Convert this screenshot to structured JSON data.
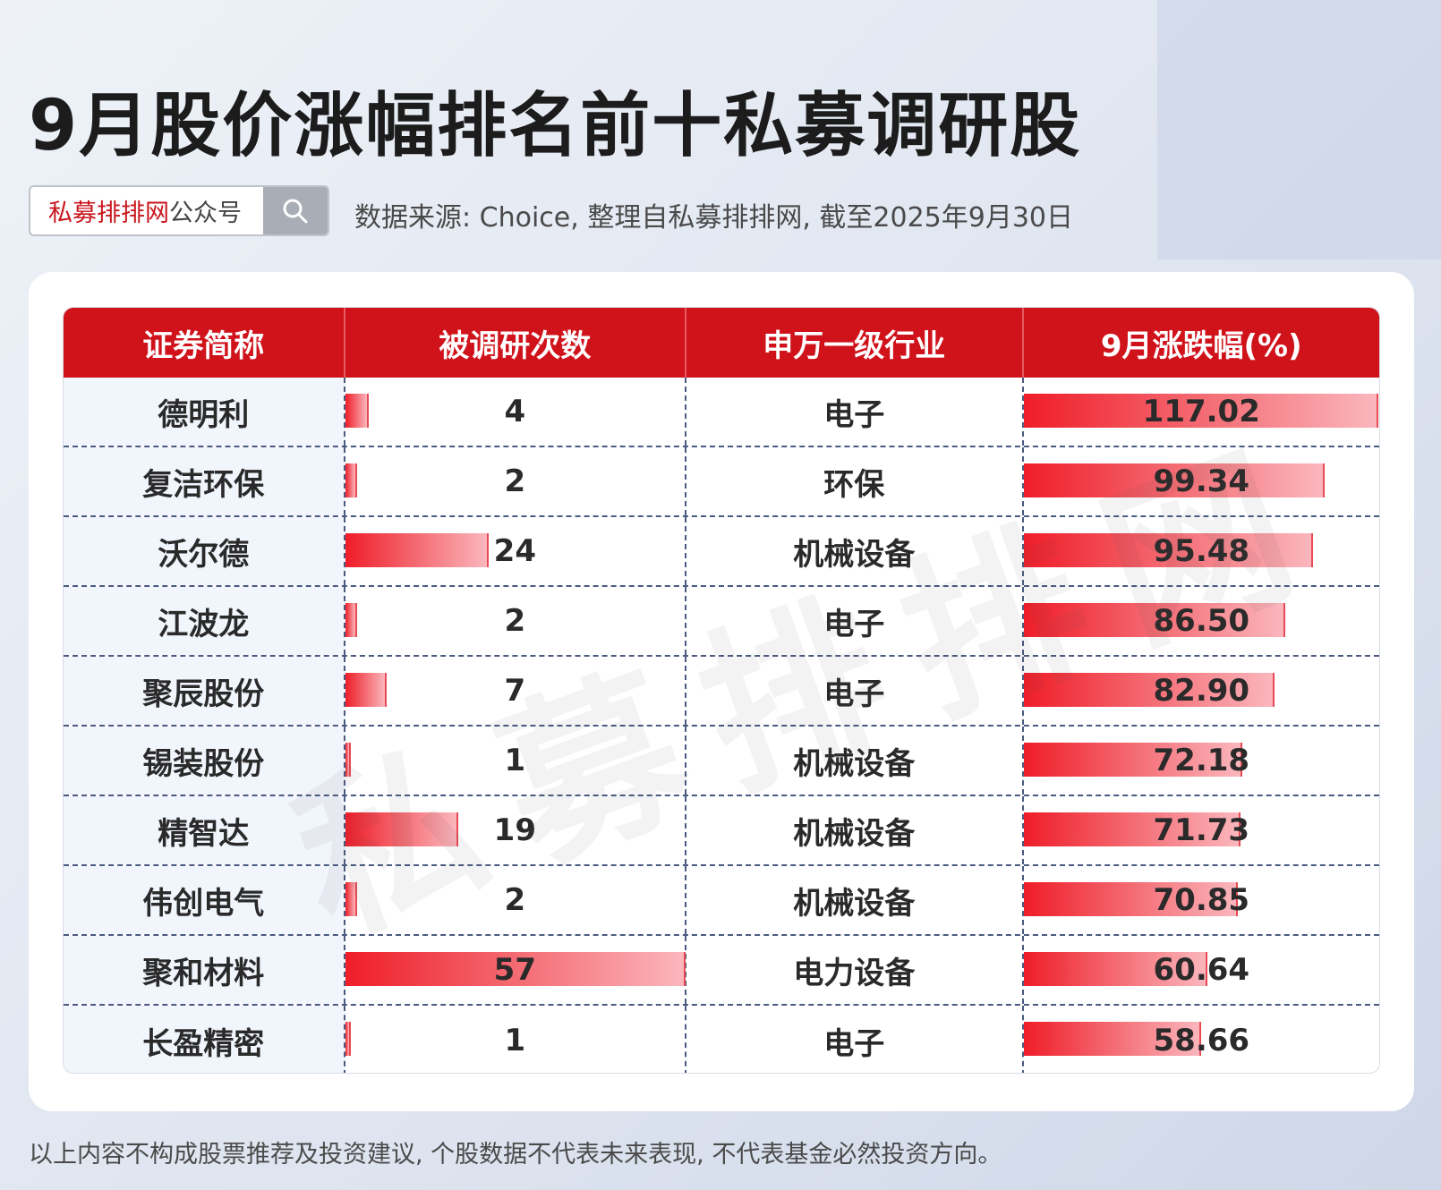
{
  "title": "9月股价涨幅排名前十私募调研股",
  "search": {
    "brand": "私募排排网",
    "suffix": "公众号",
    "icon": "search-icon"
  },
  "source": "数据来源: Choice, 整理自私募排排网, 截至2025年9月30日",
  "watermark": "私募排排网",
  "footer": "以上内容不构成股票推荐及投资建议, 个股数据不代表未来表现, 不代表基金必然投资方向。",
  "colors": {
    "header_red": "#d0121b",
    "bar_red": "#ef1d29"
  },
  "chart_data": {
    "type": "table",
    "columns": [
      "证券简称",
      "被调研次数",
      "申万一级行业",
      "9月涨跌幅(%)"
    ],
    "rows": [
      {
        "name": "德明利",
        "count": "4",
        "industry": "电子",
        "change": "117.02"
      },
      {
        "name": "复洁环保",
        "count": "2",
        "industry": "环保",
        "change": "99.34"
      },
      {
        "name": "沃尔德",
        "count": "24",
        "industry": "机械设备",
        "change": "95.48"
      },
      {
        "name": "江波龙",
        "count": "2",
        "industry": "电子",
        "change": "86.50"
      },
      {
        "name": "聚辰股份",
        "count": "7",
        "industry": "电子",
        "change": "82.90"
      },
      {
        "name": "锡装股份",
        "count": "1",
        "industry": "机械设备",
        "change": "72.18"
      },
      {
        "name": "精智达",
        "count": "19",
        "industry": "机械设备",
        "change": "71.73"
      },
      {
        "name": "伟创电气",
        "count": "2",
        "industry": "机械设备",
        "change": "70.85"
      },
      {
        "name": "聚和材料",
        "count": "57",
        "industry": "电力设备",
        "change": "60.64"
      },
      {
        "name": "长盈精密",
        "count": "1",
        "industry": "电子",
        "change": "58.66"
      }
    ]
  }
}
